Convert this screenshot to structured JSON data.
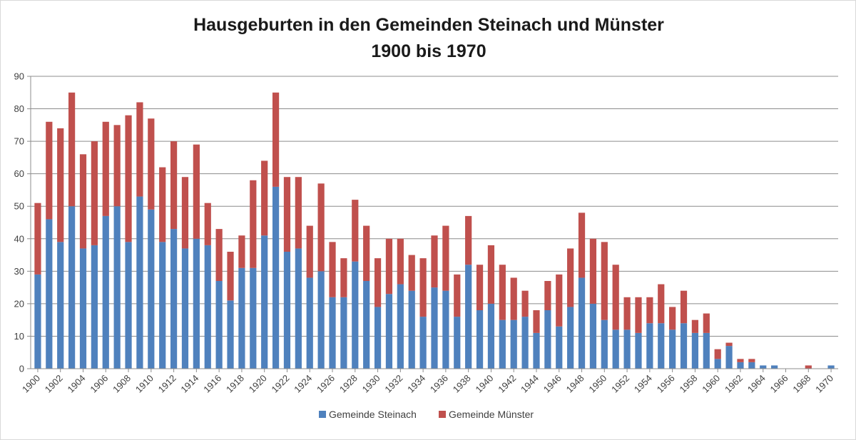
{
  "chart_data": {
    "type": "bar",
    "stacked": true,
    "title": [
      "Hausgeburten in den Gemeinden Steinach und Münster",
      "1900 bis 1970"
    ],
    "xlabel": "",
    "ylabel": "",
    "ylim": [
      0,
      90
    ],
    "yticks": [
      0,
      10,
      20,
      30,
      40,
      50,
      60,
      70,
      80,
      90
    ],
    "xtick_labels": [
      "1900",
      "1902",
      "1904",
      "1906",
      "1908",
      "1910",
      "1912",
      "1914",
      "1916",
      "1918",
      "1920",
      "1922",
      "1924",
      "1926",
      "1928",
      "1930",
      "1932",
      "1934",
      "1936",
      "1938",
      "1940",
      "1942",
      "1944",
      "1946",
      "1948",
      "1950",
      "1952",
      "1954",
      "1956",
      "1958",
      "1960",
      "1962",
      "1964",
      "1966",
      "1968",
      "1970"
    ],
    "grid": true,
    "legend_position": "bottom",
    "categories": [
      1900,
      1901,
      1902,
      1903,
      1904,
      1905,
      1906,
      1907,
      1908,
      1909,
      1910,
      1911,
      1912,
      1913,
      1914,
      1915,
      1916,
      1917,
      1918,
      1919,
      1920,
      1921,
      1922,
      1923,
      1924,
      1925,
      1926,
      1927,
      1928,
      1929,
      1930,
      1931,
      1932,
      1933,
      1934,
      1935,
      1936,
      1937,
      1938,
      1939,
      1940,
      1941,
      1942,
      1943,
      1944,
      1945,
      1946,
      1947,
      1948,
      1949,
      1950,
      1951,
      1952,
      1953,
      1954,
      1955,
      1956,
      1957,
      1958,
      1959,
      1960,
      1961,
      1962,
      1963,
      1964,
      1965,
      1966,
      1967,
      1968,
      1969,
      1970
    ],
    "series": [
      {
        "name": "Gemeinde Steinach",
        "color": "#4f81bd",
        "values": [
          29,
          46,
          39,
          50,
          37,
          38,
          47,
          50,
          39,
          53,
          49,
          39,
          43,
          37,
          40,
          38,
          27,
          21,
          31,
          31,
          41,
          56,
          36,
          37,
          28,
          30,
          22,
          22,
          33,
          27,
          19,
          23,
          26,
          24,
          16,
          25,
          24,
          16,
          32,
          18,
          20,
          15,
          15,
          16,
          11,
          18,
          13,
          19,
          28,
          20,
          15,
          12,
          12,
          11,
          14,
          14,
          12,
          14,
          11,
          11,
          3,
          7,
          2,
          2,
          1,
          1,
          0,
          0,
          0,
          0,
          1
        ]
      },
      {
        "name": "Gemeinde Münster",
        "color": "#c0504d",
        "values": [
          22,
          30,
          35,
          35,
          29,
          32,
          29,
          25,
          39,
          29,
          28,
          23,
          27,
          22,
          29,
          13,
          16,
          15,
          10,
          27,
          23,
          29,
          23,
          22,
          16,
          27,
          17,
          12,
          19,
          17,
          15,
          17,
          14,
          11,
          18,
          16,
          20,
          13,
          15,
          14,
          18,
          17,
          13,
          8,
          7,
          9,
          16,
          18,
          20,
          20,
          24,
          20,
          10,
          11,
          8,
          12,
          7,
          10,
          4,
          6,
          3,
          1,
          1,
          1,
          0,
          0,
          0,
          0,
          1,
          0,
          0
        ]
      }
    ]
  }
}
